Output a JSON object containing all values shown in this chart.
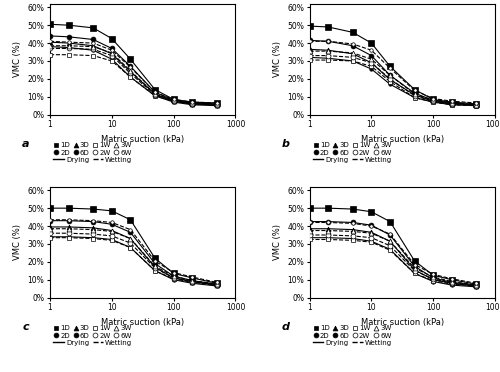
{
  "x_vals": [
    1,
    2,
    5,
    10,
    20,
    50,
    100,
    200,
    500
  ],
  "panels": {
    "a": {
      "drying": {
        "1D": [
          50.5,
          50.0,
          48.5,
          42.5,
          31.0,
          14.0,
          8.5,
          7.0,
          6.5
        ],
        "2D": [
          44.0,
          43.5,
          42.0,
          37.0,
          27.0,
          12.5,
          8.0,
          6.5,
          6.0
        ],
        "3D": [
          40.5,
          40.0,
          38.5,
          34.0,
          24.0,
          11.5,
          7.5,
          6.0,
          5.5
        ],
        "6D": [
          38.0,
          37.5,
          36.0,
          31.0,
          21.0,
          10.5,
          7.0,
          5.5,
          5.0
        ]
      },
      "wetting": {
        "1W": [
          33.5,
          33.5,
          33.0,
          30.0,
          21.0,
          10.5,
          7.5,
          6.0,
          5.5
        ],
        "2W": [
          37.0,
          37.0,
          36.5,
          33.0,
          23.0,
          11.0,
          7.5,
          6.0,
          5.5
        ],
        "3W": [
          38.5,
          38.5,
          38.0,
          34.5,
          24.5,
          11.5,
          8.0,
          6.5,
          6.0
        ],
        "6W": [
          41.0,
          40.5,
          40.0,
          36.0,
          26.5,
          12.5,
          8.5,
          7.0,
          6.5
        ]
      }
    },
    "b": {
      "drying": {
        "1D": [
          49.5,
          49.0,
          46.0,
          40.0,
          27.0,
          14.0,
          8.5,
          7.0,
          6.0
        ],
        "2D": [
          41.5,
          41.0,
          38.5,
          33.0,
          22.0,
          12.0,
          8.0,
          6.5,
          5.5
        ],
        "3D": [
          36.5,
          36.0,
          34.0,
          29.0,
          19.5,
          11.0,
          7.5,
          6.0,
          5.5
        ],
        "6D": [
          32.0,
          31.5,
          30.0,
          25.5,
          17.0,
          9.5,
          7.0,
          5.5,
          5.0
        ]
      },
      "wetting": {
        "1W": [
          30.5,
          30.5,
          30.0,
          27.0,
          18.5,
          9.5,
          7.0,
          5.5,
          5.0
        ],
        "2W": [
          33.0,
          33.0,
          32.0,
          29.0,
          20.0,
          10.5,
          7.5,
          6.0,
          5.5
        ],
        "3W": [
          35.5,
          35.5,
          34.5,
          31.0,
          22.0,
          11.5,
          8.0,
          6.5,
          5.5
        ],
        "6W": [
          41.0,
          41.0,
          39.5,
          36.0,
          26.0,
          13.5,
          9.0,
          7.5,
          6.5
        ]
      }
    },
    "c": {
      "drying": {
        "1D": [
          50.0,
          50.0,
          49.5,
          48.5,
          43.5,
          22.0,
          13.5,
          11.0,
          8.0
        ],
        "2D": [
          43.0,
          43.0,
          42.5,
          41.0,
          36.5,
          19.0,
          12.0,
          9.5,
          7.5
        ],
        "3D": [
          39.5,
          39.5,
          39.0,
          37.5,
          33.0,
          17.0,
          11.0,
          9.0,
          7.0
        ],
        "6D": [
          34.0,
          34.0,
          33.5,
          32.5,
          28.0,
          15.0,
          10.0,
          8.0,
          6.5
        ]
      },
      "wetting": {
        "1W": [
          33.5,
          33.5,
          33.0,
          32.0,
          28.0,
          15.0,
          10.5,
          8.5,
          7.0
        ],
        "2W": [
          36.0,
          36.0,
          35.5,
          34.5,
          30.5,
          16.5,
          11.0,
          9.0,
          7.0
        ],
        "3W": [
          38.5,
          38.5,
          38.0,
          37.0,
          33.0,
          17.5,
          12.0,
          9.5,
          7.5
        ],
        "6W": [
          43.5,
          43.5,
          43.0,
          42.0,
          38.0,
          20.5,
          14.0,
          11.5,
          8.5
        ]
      }
    },
    "d": {
      "drying": {
        "1D": [
          50.0,
          50.0,
          49.5,
          48.0,
          42.5,
          20.5,
          12.5,
          10.0,
          7.5
        ],
        "2D": [
          42.5,
          42.5,
          42.0,
          40.5,
          35.0,
          17.5,
          11.0,
          8.5,
          7.0
        ],
        "3D": [
          38.5,
          38.5,
          38.0,
          36.5,
          31.5,
          15.5,
          10.0,
          8.0,
          6.5
        ],
        "6D": [
          33.5,
          33.5,
          33.0,
          31.5,
          27.0,
          13.5,
          9.0,
          7.0,
          6.0
        ]
      },
      "wetting": {
        "1W": [
          32.5,
          32.5,
          32.0,
          31.0,
          26.5,
          13.5,
          9.5,
          7.5,
          6.5
        ],
        "2W": [
          35.0,
          35.0,
          34.5,
          33.5,
          29.0,
          15.0,
          10.5,
          8.0,
          6.5
        ],
        "3W": [
          37.5,
          37.5,
          37.0,
          36.0,
          31.5,
          16.5,
          11.5,
          9.0,
          7.0
        ],
        "6W": [
          42.0,
          42.0,
          41.5,
          40.0,
          35.5,
          18.5,
          13.0,
          10.5,
          8.0
        ]
      }
    }
  },
  "panel_labels": [
    "a",
    "b",
    "c",
    "d"
  ],
  "ylabel": "VMC (%)",
  "xlabel": "Matric suction (kPa)",
  "yticks": [
    0,
    10,
    20,
    30,
    40,
    50,
    60
  ],
  "ylim": [
    0,
    62
  ],
  "xlim": [
    1,
    1000
  ]
}
